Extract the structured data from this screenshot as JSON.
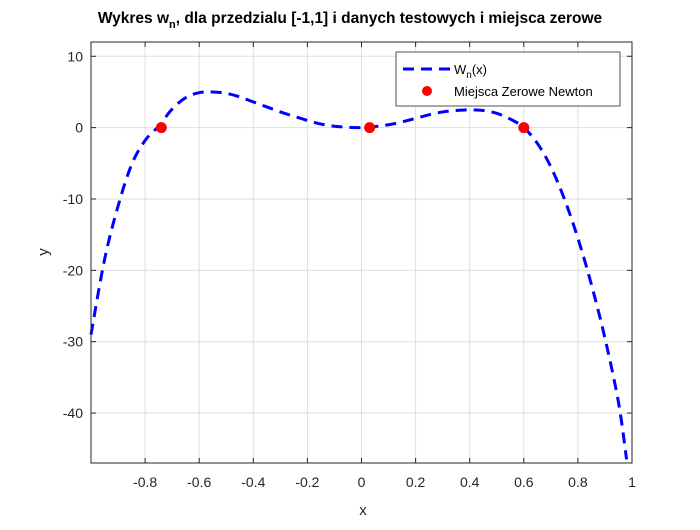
{
  "chart_data": {
    "type": "line",
    "title": {
      "main": "Wykres w",
      "subscript": "n",
      "rest": ", dla przedzialu [-1,1] i danych testowych i miejsca zerowe"
    },
    "xlabel": "x",
    "ylabel": "y",
    "xlim": [
      -1,
      1
    ],
    "ylim": [
      -47,
      12
    ],
    "x_ticks": [
      -0.8,
      -0.6,
      -0.4,
      -0.2,
      0,
      0.2,
      0.4,
      0.6,
      0.8,
      1
    ],
    "x_tick_labels": [
      "-0.8",
      "-0.6",
      "-0.4",
      "-0.2",
      "0",
      "0.2",
      "0.4",
      "0.6",
      "0.8",
      "1"
    ],
    "y_ticks": [
      -40,
      -30,
      -20,
      -10,
      0,
      10
    ],
    "y_tick_labels": [
      "-40",
      "-30",
      "-20",
      "-10",
      "0",
      "10"
    ],
    "grid": true,
    "legend_position": "top-right",
    "series": [
      {
        "name_main": "W",
        "name_sub": "n",
        "name_rest": "(x)",
        "style": "dashed",
        "color": "#0000ff",
        "x": [
          -1.0,
          -0.95,
          -0.9,
          -0.85,
          -0.8,
          -0.75,
          -0.7,
          -0.65,
          -0.6,
          -0.55,
          -0.5,
          -0.45,
          -0.4,
          -0.35,
          -0.3,
          -0.25,
          -0.2,
          -0.15,
          -0.1,
          -0.05,
          0.0,
          0.05,
          0.1,
          0.15,
          0.2,
          0.25,
          0.3,
          0.35,
          0.4,
          0.45,
          0.5,
          0.55,
          0.6,
          0.65,
          0.7,
          0.75,
          0.8,
          0.85,
          0.9,
          0.95,
          0.98
        ],
        "y": [
          -29.0,
          -18.5,
          -11.0,
          -5.2,
          -1.8,
          0.2,
          2.6,
          4.2,
          4.9,
          5.0,
          4.8,
          4.3,
          3.6,
          2.9,
          2.2,
          1.6,
          1.0,
          0.5,
          0.2,
          0.05,
          0.0,
          0.15,
          0.4,
          0.8,
          1.3,
          1.8,
          2.2,
          2.4,
          2.5,
          2.4,
          2.0,
          1.2,
          0.0,
          -2.2,
          -5.5,
          -10.0,
          -15.5,
          -22.0,
          -29.5,
          -38.5,
          -46.5
        ]
      },
      {
        "name": "Miejsca Zerowe Newton",
        "style": "markers",
        "color": "#ff0000",
        "x": [
          -0.74,
          0.03,
          0.6
        ],
        "y": [
          0,
          0,
          0
        ]
      }
    ]
  }
}
